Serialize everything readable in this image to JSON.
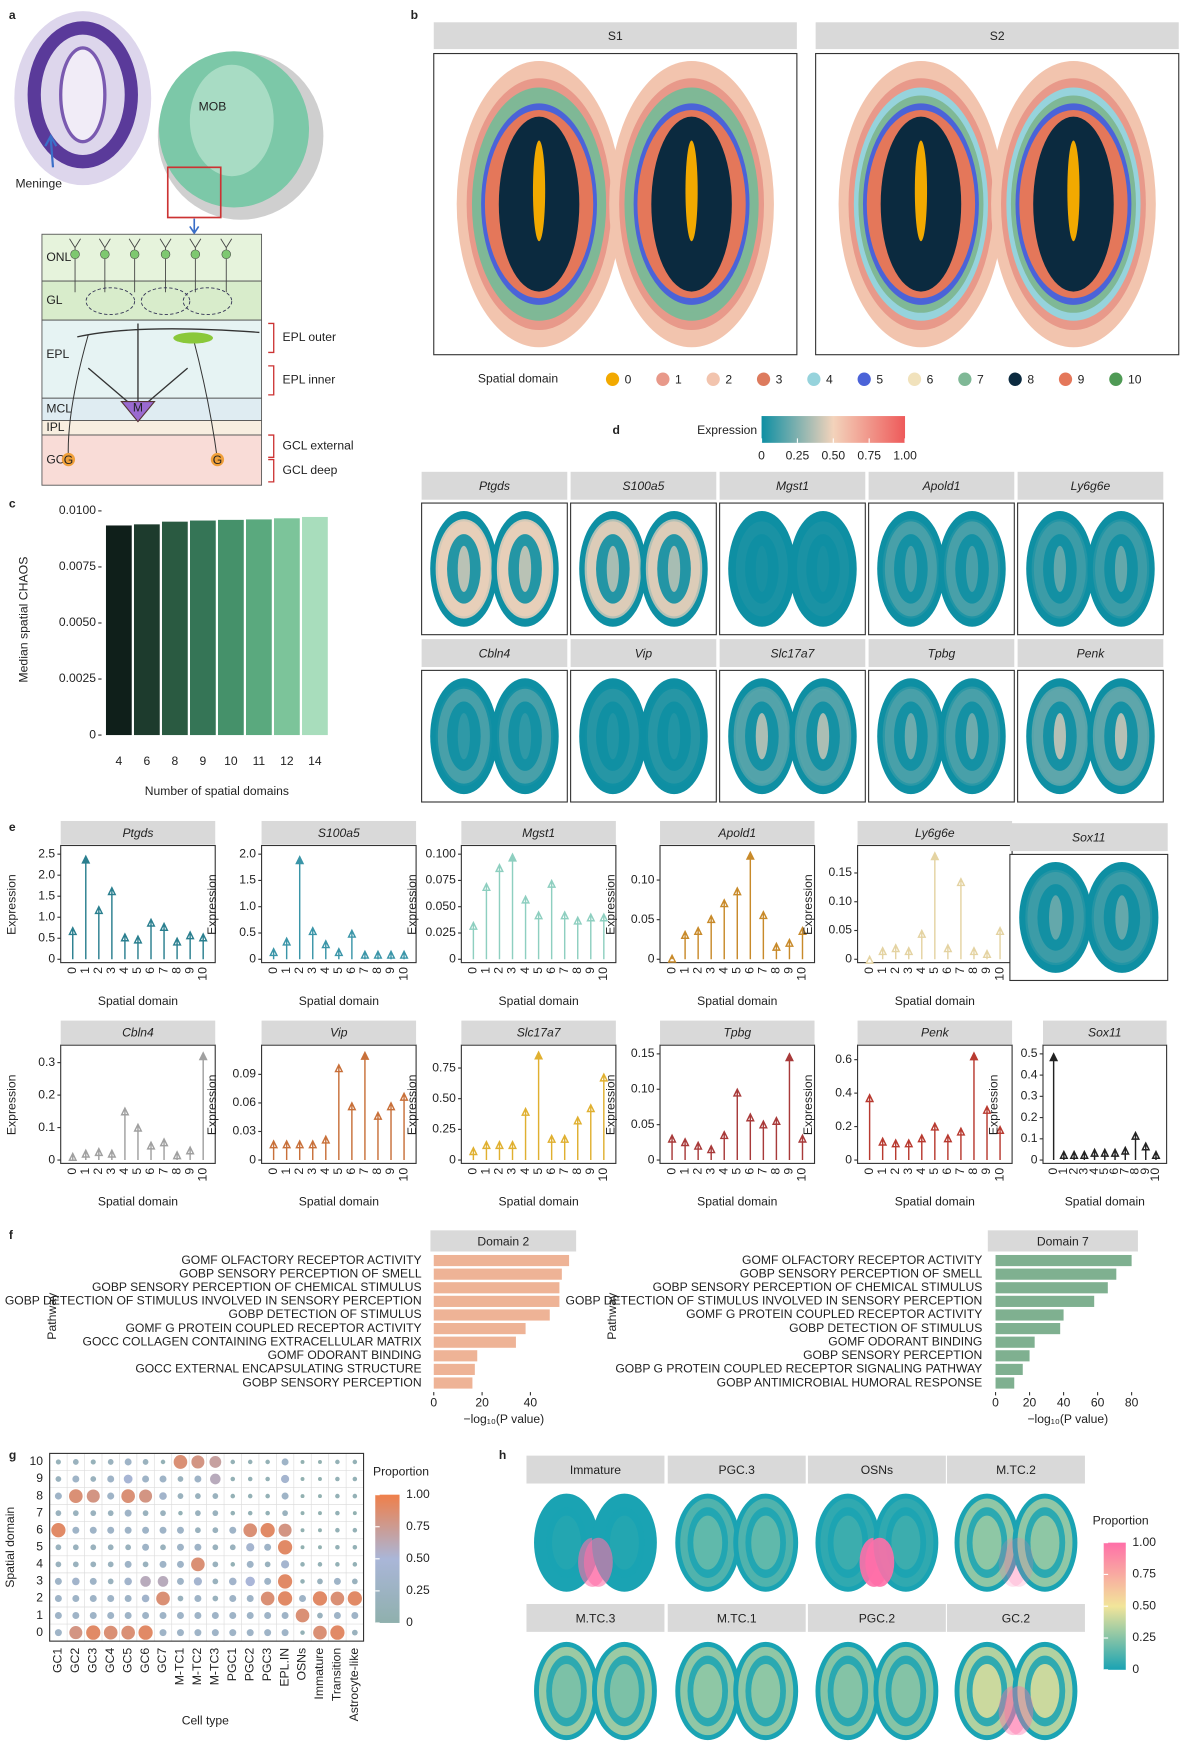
{
  "panel_labels": [
    "a",
    "b",
    "c",
    "d",
    "e",
    "f",
    "g",
    "h"
  ],
  "diagram": {
    "meninge": "Meninge",
    "mob": "MOB",
    "layers": [
      "ONL",
      "GL",
      "EPL",
      "MCL",
      "IPL",
      "GCL"
    ],
    "sublayers": [
      "EPL outer",
      "EPL inner",
      "GCL external",
      "GCL deep"
    ],
    "cells": [
      "M",
      "G",
      "G"
    ]
  },
  "chart_data": [
    {
      "type": "spatial_domains",
      "facets": [
        "S1",
        "S2"
      ],
      "legend_title": "Spatial domain",
      "series": [
        {
          "name": "0",
          "color": "#f2a900"
        },
        {
          "name": "1",
          "color": "#e8998a"
        },
        {
          "name": "2",
          "color": "#f2c4ae"
        },
        {
          "name": "3",
          "color": "#dd7b5e"
        },
        {
          "name": "4",
          "color": "#96d3dc"
        },
        {
          "name": "5",
          "color": "#4b63d8"
        },
        {
          "name": "6",
          "color": "#f1e2bc"
        },
        {
          "name": "7",
          "color": "#7fb896"
        },
        {
          "name": "8",
          "color": "#0b2a3f"
        },
        {
          "name": "9",
          "color": "#e4775a"
        },
        {
          "name": "10",
          "color": "#4f9a55"
        }
      ]
    },
    {
      "type": "bar",
      "xlabel": "Number of spatial domains",
      "ylabel": "Median spatial CHAOS",
      "categories": [
        "4",
        "6",
        "8",
        "9",
        "10",
        "11",
        "12",
        "14"
      ],
      "values": [
        0.00935,
        0.0094,
        0.00952,
        0.00957,
        0.0096,
        0.00962,
        0.00967,
        0.00973
      ],
      "colors": [
        "#0f1f1a",
        "#1d3b2d",
        "#2a5a41",
        "#357556",
        "#45916a",
        "#5aa97e",
        "#7cc49a",
        "#a8ddbc"
      ],
      "ylim": [
        0,
        0.0103
      ],
      "yticks": [
        0,
        0.0025,
        {
          "value": 0.005,
          "label": "0.0050"
        },
        0.0075,
        {
          "value": 0.01,
          "label": "0.0100"
        }
      ]
    },
    {
      "type": "spatial_expression",
      "colorbar_title": "Expression",
      "colorscale": [
        "#0e8fa3",
        "#f3d3bb",
        "#ee5a5a"
      ],
      "colorbar_lim": [
        0,
        1
      ],
      "colorbar_ticks": [
        0,
        0.25,
        {
          "value": 0.5,
          "label": "0.50"
        },
        0.75,
        {
          "value": 1,
          "label": "1.00"
        }
      ],
      "facets": [
        "Ptgds",
        "S100a5",
        "Mgst1",
        "Apold1",
        "Ly6g6e",
        "Cbln4",
        "Vip",
        "Slc17a7",
        "Tpbg",
        "Penk"
      ]
    },
    {
      "type": "lollipop",
      "title": "Ptgds",
      "xlabel": "Spatial domain",
      "ylabel": "Expression",
      "categories": [
        "0",
        "1",
        "2",
        "3",
        "4",
        "5",
        "6",
        "7",
        "8",
        "9",
        "10"
      ],
      "values": [
        0.75,
        2.45,
        1.25,
        1.7,
        0.6,
        0.55,
        0.95,
        0.85,
        0.5,
        0.65,
        0.6
      ],
      "color": "#2a7f8f",
      "ylim": [
        0,
        2.6
      ],
      "yticks": [
        0,
        0.5,
        {
          "value": 1,
          "label": "1.0"
        },
        1.5,
        {
          "value": 2,
          "label": "2.0"
        },
        2.5
      ]
    },
    {
      "type": "lollipop",
      "title": "S100a5",
      "xlabel": "Spatial domain",
      "ylabel": "Expression",
      "categories": [
        "0",
        "1",
        "2",
        "3",
        "4",
        "5",
        "6",
        "7",
        "8",
        "9",
        "10"
      ],
      "values": [
        0.2,
        0.4,
        1.95,
        0.6,
        0.35,
        0.2,
        0.55,
        0.15,
        0.15,
        0.15,
        0.15
      ],
      "color": "#3a95a8",
      "ylim": [
        0,
        2.08
      ],
      "yticks": [
        0,
        0.5,
        {
          "value": 1,
          "label": "1.0"
        },
        1.5,
        {
          "value": 2,
          "label": "2.0"
        }
      ]
    },
    {
      "type": "lollipop",
      "title": "Mgst1",
      "xlabel": "Spatial domain",
      "ylabel": "Expression",
      "categories": [
        "0",
        "1",
        "2",
        "3",
        "4",
        "5",
        "6",
        "7",
        "8",
        "9",
        "10"
      ],
      "values": [
        0.035,
        0.072,
        0.09,
        0.1,
        0.06,
        0.045,
        0.075,
        0.045,
        0.04,
        0.043,
        0.043
      ],
      "color": "#8ecfc0",
      "ylim": [
        0,
        0.104
      ],
      "yticks": [
        0,
        0.025,
        {
          "value": 0.05,
          "label": "0.050"
        },
        0.075,
        {
          "value": 0.1,
          "label": "0.100"
        }
      ]
    },
    {
      "type": "lollipop",
      "title": "Apold1",
      "xlabel": "Spatial domain",
      "ylabel": "Expression",
      "categories": [
        "0",
        "1",
        "2",
        "3",
        "4",
        "5",
        "6",
        "7",
        "8",
        "9",
        "10"
      ],
      "values": [
        0.005,
        0.035,
        0.04,
        0.055,
        0.075,
        0.09,
        0.135,
        0.06,
        0.02,
        0.025,
        0.04
      ],
      "color": "#c88a2a",
      "ylim": [
        0,
        0.138
      ],
      "yticks": [
        0,
        0.05,
        {
          "value": 0.1,
          "label": "0.10"
        }
      ]
    },
    {
      "type": "lollipop",
      "title": "Ly6g6e",
      "xlabel": "Spatial domain",
      "ylabel": "Expression",
      "categories": [
        "0",
        "1",
        "2",
        "3",
        "4",
        "5",
        "6",
        "7",
        "8",
        "9",
        "10"
      ],
      "values": [
        0.005,
        0.02,
        0.025,
        0.02,
        0.05,
        0.185,
        0.025,
        0.14,
        0.02,
        0.015,
        0.055
      ],
      "color": "#e4d3a2",
      "ylim": [
        0,
        0.19
      ],
      "yticks": [
        0,
        0.05,
        {
          "value": 0.1,
          "label": "0.10"
        },
        0.15
      ]
    },
    {
      "type": "spatial_expression",
      "facets": [
        "Sox11"
      ],
      "colorscale": [
        "#0e8fa3",
        "#f3d3bb",
        "#ee5a5a"
      ]
    },
    {
      "type": "lollipop",
      "title": "Cbln4",
      "xlabel": "Spatial domain",
      "ylabel": "Expression",
      "categories": [
        "0",
        "1",
        "2",
        "3",
        "4",
        "5",
        "6",
        "7",
        "8",
        "9",
        "10"
      ],
      "values": [
        0.02,
        0.03,
        0.035,
        0.03,
        0.16,
        0.11,
        0.055,
        0.065,
        0.025,
        0.04,
        0.33
      ],
      "color": "#a0a0a0",
      "ylim": [
        0,
        0.34
      ],
      "yticks": [
        0,
        0.1,
        0.2,
        0.3
      ]
    },
    {
      "type": "lollipop",
      "title": "Vip",
      "xlabel": "Spatial domain",
      "ylabel": "Expression",
      "categories": [
        "0",
        "1",
        "2",
        "3",
        "4",
        "5",
        "6",
        "7",
        "8",
        "9",
        "10"
      ],
      "values": [
        0.02,
        0.02,
        0.02,
        0.02,
        0.025,
        0.1,
        0.06,
        0.113,
        0.05,
        0.06,
        0.07
      ],
      "color": "#c8703a",
      "ylim": [
        0,
        0.116
      ],
      "yticks": [
        0,
        0.03,
        0.06,
        0.09
      ]
    },
    {
      "type": "lollipop",
      "title": "Slc17a7",
      "xlabel": "Spatial domain",
      "ylabel": "Expression",
      "categories": [
        "0",
        "1",
        "2",
        "3",
        "4",
        "5",
        "6",
        "7",
        "8",
        "9",
        "10"
      ],
      "values": [
        0.1,
        0.15,
        0.15,
        0.15,
        0.42,
        0.88,
        0.2,
        0.2,
        0.35,
        0.45,
        0.7
      ],
      "color": "#e0b030",
      "ylim": [
        0,
        0.9
      ],
      "yticks": [
        0,
        0.25,
        {
          "value": 0.5,
          "label": "0.50"
        },
        0.75
      ]
    },
    {
      "type": "lollipop",
      "title": "Tpbg",
      "xlabel": "Spatial domain",
      "ylabel": "Expression",
      "categories": [
        "0",
        "1",
        "2",
        "3",
        "4",
        "5",
        "6",
        "7",
        "8",
        "9",
        "10"
      ],
      "values": [
        0.035,
        0.03,
        0.025,
        0.02,
        0.04,
        0.1,
        0.065,
        0.055,
        0.06,
        0.15,
        0.035
      ],
      "color": "#a83a3a",
      "ylim": [
        0,
        0.156
      ],
      "yticks": [
        0,
        0.05,
        {
          "value": 0.1,
          "label": "0.10"
        },
        0.15
      ]
    },
    {
      "type": "lollipop",
      "title": "Penk",
      "xlabel": "Spatial domain",
      "ylabel": "Expression",
      "categories": [
        "0",
        "1",
        "2",
        "3",
        "4",
        "5",
        "6",
        "7",
        "8",
        "9",
        "10"
      ],
      "values": [
        0.39,
        0.13,
        0.12,
        0.12,
        0.15,
        0.22,
        0.15,
        0.19,
        0.64,
        0.32,
        0.2
      ],
      "color": "#b83a30",
      "ylim": [
        0,
        0.66
      ],
      "yticks": [
        0,
        0.2,
        0.4,
        0.6
      ]
    },
    {
      "type": "lollipop",
      "title": "Sox11",
      "xlabel": "Spatial domain",
      "ylabel": "Expression",
      "categories": [
        "0",
        "1",
        "2",
        "3",
        "4",
        "5",
        "6",
        "7",
        "8",
        "9",
        "10"
      ],
      "values": [
        0.5,
        0.04,
        0.04,
        0.04,
        0.05,
        0.05,
        0.05,
        0.06,
        0.13,
        0.08,
        0.04
      ],
      "color": "#222222",
      "ylim": [
        0,
        0.52
      ],
      "yticks": [
        0,
        0.1,
        0.2,
        0.3,
        0.4,
        0.5
      ]
    },
    {
      "type": "hbar",
      "title": "Domain 2",
      "xlabel": "−log₁₀(P value)",
      "ylabel": "Pathway",
      "categories": [
        "GOMF OLFACTORY RECEPTOR ACTIVITY",
        "GOBP SENSORY PERCEPTION OF SMELL",
        "GOBP SENSORY PERCEPTION OF CHEMICAL STIMULUS",
        "GOBP DETECTION OF STIMULUS INVOLVED IN SENSORY PERCEPTION",
        "GOBP DETECTION OF STIMULUS",
        "GOMF G PROTEIN COUPLED RECEPTOR ACTIVITY",
        "GOCC COLLAGEN CONTAINING EXTRACELLULAR MATRIX",
        "GOMF ODORANT BINDING",
        "GOCC EXTERNAL ENCAPSULATING STRUCTURE",
        "GOBP SENSORY PERCEPTION"
      ],
      "values": [
        56,
        53,
        52,
        52,
        48,
        38,
        34,
        18,
        17,
        16
      ],
      "color": "#eeb396",
      "xlim": [
        0,
        58
      ],
      "xticks": [
        0,
        20,
        40
      ]
    },
    {
      "type": "hbar",
      "title": "Domain 7",
      "xlabel": "−log₁₀(P value)",
      "ylabel": "Pathway",
      "categories": [
        "GOMF OLFACTORY RECEPTOR ACTIVITY",
        "GOBP SENSORY PERCEPTION OF SMELL",
        "GOBP SENSORY PERCEPTION OF CHEMICAL STIMULUS",
        "GOBP DETECTION OF STIMULUS INVOLVED IN SENSORY PERCEPTION",
        "GOMF G PROTEIN COUPLED RECEPTOR ACTIVITY",
        "GOBP DETECTION OF STIMULUS",
        "GOMF ODORANT BINDING",
        "GOBP SENSORY PERCEPTION",
        "GOBP G PROTEIN COUPLED RECEPTOR SIGNALING PATHWAY",
        "GOBP ANTIMICROBIAL HUMORAL RESPONSE"
      ],
      "values": [
        80,
        71,
        66,
        58,
        40,
        38,
        23,
        20,
        16,
        11
      ],
      "color": "#7fb090",
      "xlim": [
        0,
        85
      ],
      "xticks": [
        0,
        20,
        40,
        60,
        80
      ]
    },
    {
      "type": "dotplot",
      "xlabel": "Cell type",
      "ylabel": "Spatial domain",
      "x_categories": [
        "GC1",
        "GC2",
        "GC3",
        "GC4",
        "GC5",
        "GC6",
        "GC7",
        "M-TC1",
        "M-TC2",
        "M-TC3",
        "PGC1",
        "PGC2",
        "PGC3",
        "EPL.IN",
        "OSNs",
        "Immature",
        "Transition",
        "Astrocyte-like"
      ],
      "y_categories": [
        "0",
        "1",
        "2",
        "3",
        "4",
        "5",
        "6",
        "7",
        "8",
        "9",
        "10"
      ],
      "values": [
        [
          0.3,
          0.8,
          0.9,
          0.85,
          0.85,
          0.9,
          0.3,
          0.3,
          0.3,
          0.3,
          0.3,
          0.3,
          0.3,
          0.3,
          0.1,
          0.85,
          0.9,
          0.2
        ],
        [
          0.3,
          0.3,
          0.3,
          0.3,
          0.3,
          0.3,
          0.3,
          0.3,
          0.3,
          0.3,
          0.3,
          0.3,
          0.3,
          0.3,
          0.85,
          0.2,
          0.3,
          0.3
        ],
        [
          0.3,
          0.3,
          0.3,
          0.3,
          0.3,
          0.35,
          0.85,
          0.2,
          0.3,
          0.2,
          0.3,
          0.3,
          0.85,
          0.9,
          0.3,
          0.9,
          0.85,
          0.9
        ],
        [
          0.3,
          0.35,
          0.3,
          0.2,
          0.35,
          0.6,
          0.6,
          0.3,
          0.4,
          0.2,
          0.35,
          0.5,
          0.3,
          0.9,
          0.1,
          0.2,
          0.3,
          0.2
        ],
        [
          0.2,
          0.2,
          0.2,
          0.2,
          0.3,
          0.2,
          0.3,
          0.3,
          0.85,
          0.2,
          0.1,
          0.3,
          0.2,
          0.4,
          0.1,
          0.1,
          0.1,
          0.1
        ],
        [
          0.2,
          0.2,
          0.2,
          0.2,
          0.2,
          0.3,
          0.2,
          0.3,
          0.3,
          0.2,
          0.2,
          0.4,
          0.3,
          0.9,
          0.05,
          0.05,
          0.1,
          0.1
        ],
        [
          0.9,
          0.3,
          0.3,
          0.3,
          0.3,
          0.3,
          0.3,
          0.3,
          0.2,
          0.2,
          0.3,
          0.85,
          0.9,
          0.8,
          0.05,
          0.05,
          0.1,
          0.1
        ],
        [
          0.2,
          0.2,
          0.2,
          0.2,
          0.3,
          0.2,
          0.2,
          0.1,
          0.2,
          0.2,
          0.1,
          0.1,
          0.1,
          0.2,
          0.05,
          0.05,
          0.1,
          0.05
        ],
        [
          0.3,
          0.85,
          0.8,
          0.3,
          0.85,
          0.8,
          0.35,
          0.2,
          0.2,
          0.2,
          0.1,
          0.1,
          0.1,
          0.3,
          0.05,
          0.05,
          0.1,
          0.1
        ],
        [
          0.2,
          0.3,
          0.2,
          0.3,
          0.45,
          0.3,
          0.3,
          0.2,
          0.3,
          0.6,
          0.1,
          0.1,
          0.1,
          0.4,
          0.05,
          0.05,
          0.1,
          0.1
        ],
        [
          0.15,
          0.2,
          0.15,
          0.2,
          0.3,
          0.2,
          0.1,
          0.85,
          0.8,
          0.7,
          0.1,
          0.1,
          0.1,
          0.3,
          0.05,
          0.05,
          0.1,
          0.1
        ]
      ],
      "colorbar_title": "Proportion",
      "colorscale": [
        "#8fb0ad",
        "#aab6d8",
        "#ef7f4a"
      ],
      "colorbar_lim": [
        0,
        1
      ],
      "colorbar_ticks": [
        0,
        0.25,
        {
          "value": 0.5,
          "label": "0.50"
        },
        0.75,
        {
          "value": 1,
          "label": "1.00"
        }
      ]
    },
    {
      "type": "spatial_proportion",
      "facets": [
        "Immature",
        "PGC.3",
        "OSNs",
        "M.TC.2",
        "M.TC.3",
        "M.TC.1",
        "PGC.2",
        "GC.2"
      ],
      "colorbar_title": "Proportion",
      "colorscale": [
        "#1aa3b3",
        "#f2e59a",
        "#ff6fa8"
      ],
      "colorbar_lim": [
        0,
        1
      ],
      "colorbar_ticks": [
        0,
        0.25,
        {
          "value": 0.5,
          "label": "0.50"
        },
        0.75,
        {
          "value": 1,
          "label": "1.00"
        }
      ]
    }
  ]
}
